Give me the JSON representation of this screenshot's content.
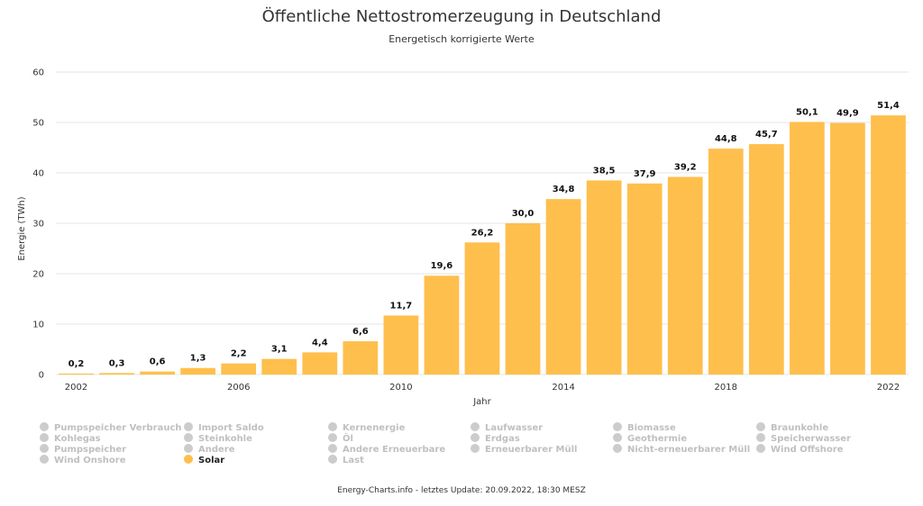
{
  "chart_data": {
    "type": "bar",
    "title": "Öffentliche Nettostromerzeugung in Deutschland",
    "subtitle": "Energetisch korrigierte Werte",
    "xlabel": "Jahr",
    "ylabel": "Energie (TWh)",
    "ylim": [
      0,
      60
    ],
    "yticks": [
      0,
      10,
      20,
      30,
      40,
      50,
      60
    ],
    "xticks": [
      "2002",
      "2006",
      "2010",
      "2014",
      "2018",
      "2022"
    ],
    "categories": [
      "2002",
      "2003",
      "2004",
      "2005",
      "2006",
      "2007",
      "2008",
      "2009",
      "2010",
      "2011",
      "2012",
      "2013",
      "2014",
      "2015",
      "2016",
      "2017",
      "2018",
      "2019",
      "2020",
      "2021",
      "2022"
    ],
    "series": [
      {
        "name": "Solar",
        "color": "#ffbf4d",
        "values": [
          0.2,
          0.3,
          0.6,
          1.3,
          2.2,
          3.1,
          4.4,
          6.6,
          11.7,
          19.6,
          26.2,
          30.0,
          34.8,
          38.5,
          37.9,
          39.2,
          44.8,
          45.7,
          50.1,
          49.9,
          51.4
        ],
        "labels": [
          "0,2",
          "0,3",
          "0,6",
          "1,3",
          "2,2",
          "3,1",
          "4,4",
          "6,6",
          "11,7",
          "19,6",
          "26,2",
          "30,0",
          "34,8",
          "38,5",
          "37,9",
          "39,2",
          "44,8",
          "45,7",
          "50,1",
          "49,9",
          "51,4"
        ]
      }
    ],
    "grid": true
  },
  "legend": {
    "columns": [
      [
        "Pumpspeicher Verbrauch",
        "Kohlegas",
        "Pumpspeicher",
        "Wind Onshore"
      ],
      [
        "Import Saldo",
        "Steinkohle",
        "Andere",
        "Solar"
      ],
      [
        "Kernenergie",
        "Öl",
        "Andere Erneuerbare",
        "Last"
      ],
      [
        "Laufwasser",
        "Erdgas",
        "Erneuerbarer Müll"
      ],
      [
        "Biomasse",
        "Geothermie",
        "Nicht-erneuerbarer Müll"
      ],
      [
        "Braunkohle",
        "Speicherwasser",
        "Wind Offshore"
      ]
    ],
    "active": "Solar",
    "active_color": "#ffbf4d",
    "inactive_color": "#cccccc"
  },
  "footer": "Energy-Charts.info - letztes Update: 20.09.2022, 18:30 MESZ"
}
